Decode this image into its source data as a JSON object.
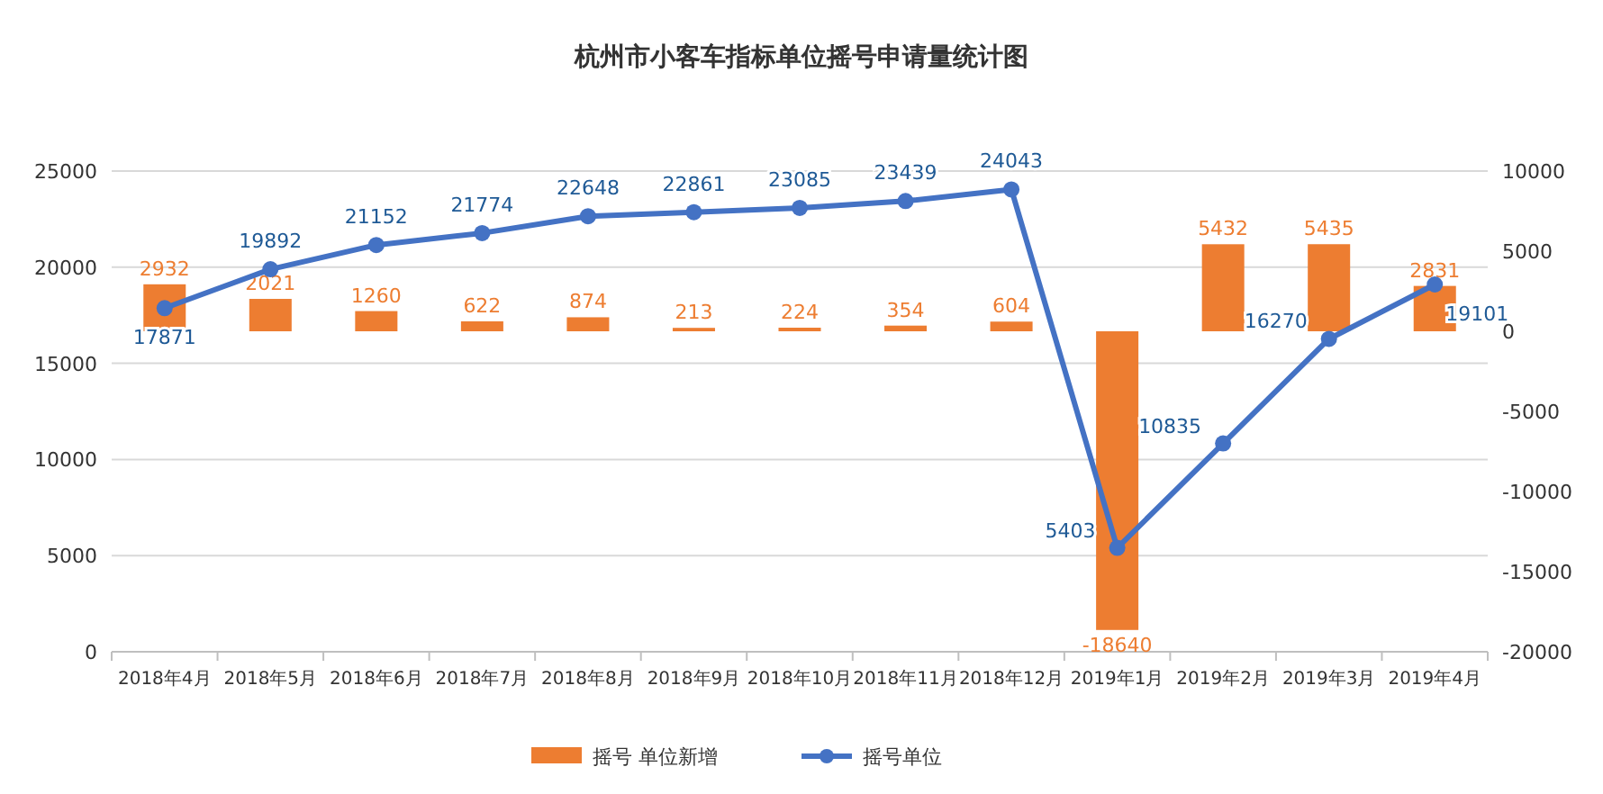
{
  "chart_data": {
    "type": "bar",
    "title": "杭州市小客车指标单位摇号申请量统计图",
    "categories": [
      "2018年4月",
      "2018年5月",
      "2018年6月",
      "2018年7月",
      "2018年8月",
      "2018年9月",
      "2018年10月",
      "2018年11月",
      "2018年12月",
      "2019年1月",
      "2019年2月",
      "2019年3月",
      "2019年4月"
    ],
    "series": [
      {
        "name": "摇号 单位新增",
        "type": "bar",
        "axis": "y2",
        "color": "#ed7d31",
        "values": [
          2932,
          2021,
          1260,
          622,
          874,
          213,
          224,
          354,
          604,
          -18640,
          5432,
          5435,
          2831
        ]
      },
      {
        "name": "摇号单位",
        "type": "line",
        "axis": "y",
        "color": "#4472c4",
        "marker": "circle",
        "values": [
          17871,
          19892,
          21152,
          21774,
          22648,
          22861,
          23085,
          23439,
          24043,
          5403,
          10835,
          16270,
          19101
        ]
      }
    ],
    "ylim": [
      0,
      25000
    ],
    "yticks": [
      0,
      5000,
      10000,
      15000,
      20000,
      25000
    ],
    "y2lim": [
      -20000,
      10000
    ],
    "y2ticks": [
      -20000,
      -15000,
      -10000,
      -5000,
      0,
      5000,
      10000
    ],
    "grid": "y",
    "legend": "bottom",
    "data_labels": true
  }
}
